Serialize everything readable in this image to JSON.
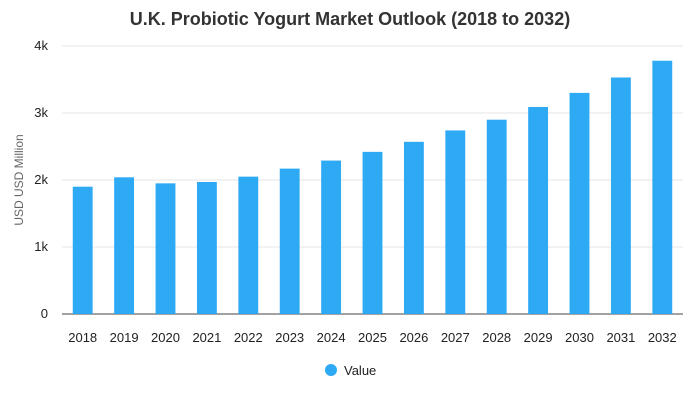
{
  "chart_data": {
    "type": "bar",
    "title": "U.K. Probiotic Yogurt Market Outlook (2018 to 2032)",
    "xlabel": "",
    "ylabel": "USD USD Million",
    "categories": [
      "2018",
      "2019",
      "2020",
      "2021",
      "2022",
      "2023",
      "2024",
      "2025",
      "2026",
      "2027",
      "2028",
      "2029",
      "2030",
      "2031",
      "2032"
    ],
    "series": [
      {
        "name": "Value",
        "values": [
          1900,
          2040,
          1950,
          1970,
          2050,
          2170,
          2290,
          2420,
          2570,
          2740,
          2900,
          3090,
          3300,
          3530,
          3780
        ],
        "color": "#2eaaf5"
      }
    ],
    "ylim": [
      0,
      4000
    ],
    "yticks": [
      0,
      1000,
      2000,
      3000,
      4000
    ],
    "ytick_labels": [
      "0",
      "1k",
      "2k",
      "3k",
      "4k"
    ],
    "grid": true,
    "legend_position": "bottom-center"
  }
}
